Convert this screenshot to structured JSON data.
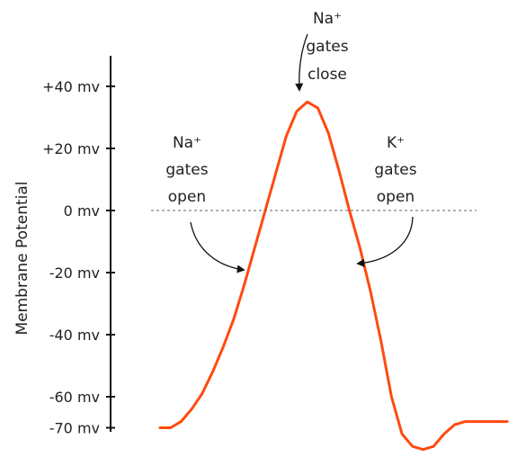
{
  "chart_data": {
    "type": "line",
    "ylabel": "Membrane Potential",
    "xlabel": "",
    "ylim": [
      -75,
      45
    ],
    "y_ticks": [
      {
        "value": 40,
        "label": "+40 mv"
      },
      {
        "value": 20,
        "label": "+20 mv"
      },
      {
        "value": 0,
        "label": "0 mv"
      },
      {
        "value": -20,
        "label": "-20 mv"
      },
      {
        "value": -40,
        "label": "-40 mv"
      },
      {
        "value": -60,
        "label": "-60 mv"
      },
      {
        "value": -70,
        "label": "-70 mv"
      }
    ],
    "threshold_line_value": 0,
    "series": [
      {
        "color": "#ff4a10",
        "points": [
          [
            0,
            -70
          ],
          [
            0.09,
            -70
          ],
          [
            0.18,
            -68
          ],
          [
            0.27,
            -64
          ],
          [
            0.36,
            -59
          ],
          [
            0.45,
            -52
          ],
          [
            0.54,
            -44
          ],
          [
            0.63,
            -35
          ],
          [
            0.72,
            -24
          ],
          [
            0.81,
            -12
          ],
          [
            0.9,
            0
          ],
          [
            0.99,
            12
          ],
          [
            1.08,
            24
          ],
          [
            1.17,
            32
          ],
          [
            1.26,
            35
          ],
          [
            1.35,
            33
          ],
          [
            1.44,
            25
          ],
          [
            1.53,
            13
          ],
          [
            1.62,
            0
          ],
          [
            1.71,
            -12
          ],
          [
            1.8,
            -26
          ],
          [
            1.89,
            -42
          ],
          [
            1.98,
            -60
          ],
          [
            2.07,
            -72
          ],
          [
            2.16,
            -76
          ],
          [
            2.25,
            -77
          ],
          [
            2.34,
            -76
          ],
          [
            2.43,
            -72
          ],
          [
            2.52,
            -69
          ],
          [
            2.61,
            -68
          ],
          [
            2.7,
            -68
          ],
          [
            2.79,
            -68
          ],
          [
            2.88,
            -68
          ],
          [
            2.97,
            -68
          ]
        ]
      }
    ],
    "annotations": [
      {
        "lines": [
          "Na⁺",
          "gates",
          "close"
        ]
      },
      {
        "lines": [
          "Na⁺",
          "gates",
          "open"
        ]
      },
      {
        "lines": [
          "K⁺",
          "gates",
          "open"
        ]
      }
    ]
  }
}
